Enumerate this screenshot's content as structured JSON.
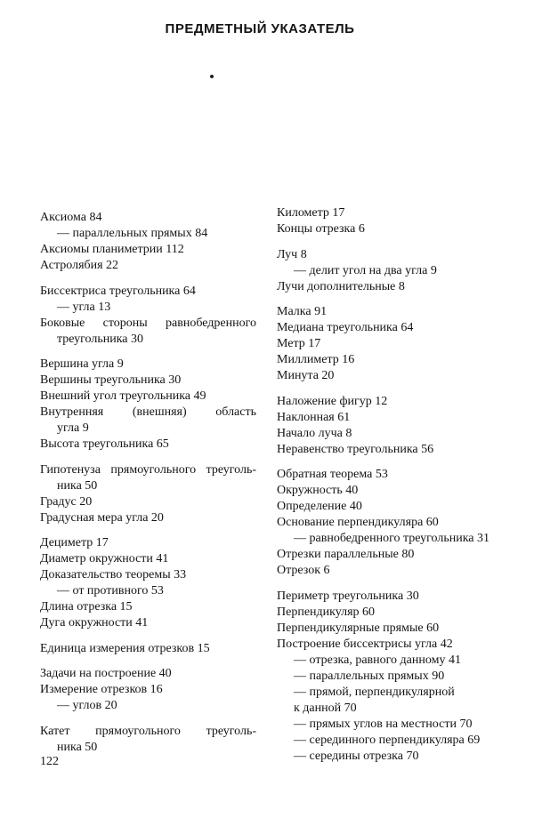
{
  "header": {
    "title": "ПРЕДМЕТНЫЙ УКАЗАТЕЛЬ"
  },
  "left_column": [
    [
      {
        "text": "Аксиома 84",
        "level": "main"
      },
      {
        "text": "— параллельных прямых 84",
        "level": "sub"
      },
      {
        "text": "Аксиомы планиметрии 112",
        "level": "main"
      },
      {
        "text": "Астролябия 22",
        "level": "main"
      }
    ],
    [
      {
        "text": "Биссектриса треугольника 64",
        "level": "main"
      },
      {
        "text": "— угла 13",
        "level": "sub"
      },
      {
        "text": "Боковые стороны равнобедренного",
        "level": "main"
      },
      {
        "text": "треугольника 30",
        "level": "cont"
      }
    ],
    [
      {
        "text": "Вершина угла 9",
        "level": "main"
      },
      {
        "text": "Вершины треугольника 30",
        "level": "main"
      },
      {
        "text": "Внешний угол треугольника 49",
        "level": "main"
      },
      {
        "text": "Внутренняя (внешняя) область",
        "level": "main"
      },
      {
        "text": "угла 9",
        "level": "cont"
      },
      {
        "text": "Высота треугольника 65",
        "level": "main"
      }
    ],
    [
      {
        "text": "Гипотенуза прямоугольного треуголь-",
        "level": "main"
      },
      {
        "text": "ника 50",
        "level": "cont"
      },
      {
        "text": "Градус 20",
        "level": "main"
      },
      {
        "text": "Градусная мера угла 20",
        "level": "main"
      }
    ],
    [
      {
        "text": "Дециметр 17",
        "level": "main"
      },
      {
        "text": "Диаметр окружности 41",
        "level": "main"
      },
      {
        "text": "Доказательство теоремы 33",
        "level": "main"
      },
      {
        "text": "— от противного 53",
        "level": "sub"
      },
      {
        "text": "Длина отрезка 15",
        "level": "main"
      },
      {
        "text": "Дуга окружности 41",
        "level": "main"
      }
    ],
    [
      {
        "text": "Единица измерения отрезков 15",
        "level": "main"
      }
    ],
    [
      {
        "text": "Задачи на построение 40",
        "level": "main"
      },
      {
        "text": "Измерение отрезков 16",
        "level": "main"
      },
      {
        "text": "— углов 20",
        "level": "sub"
      }
    ],
    [
      {
        "text": "Катет прямоугольного треуголь-",
        "level": "main"
      },
      {
        "text": "ника 50",
        "level": "cont"
      }
    ]
  ],
  "right_column": [
    [
      {
        "text": "Километр 17",
        "level": "main"
      },
      {
        "text": "Концы отрезка 6",
        "level": "main"
      }
    ],
    [
      {
        "text": "Луч 8",
        "level": "main"
      },
      {
        "text": "— делит угол на два угла 9",
        "level": "sub"
      },
      {
        "text": "Лучи дополнительные 8",
        "level": "main"
      }
    ],
    [
      {
        "text": "Малка 91",
        "level": "main"
      },
      {
        "text": "Медиана треугольника 64",
        "level": "main"
      },
      {
        "text": "Метр 17",
        "level": "main"
      },
      {
        "text": "Миллиметр 16",
        "level": "main"
      },
      {
        "text": "Минута 20",
        "level": "main"
      }
    ],
    [
      {
        "text": "Наложение фигур 12",
        "level": "main"
      },
      {
        "text": "Наклонная 61",
        "level": "main"
      },
      {
        "text": "Начало луча 8",
        "level": "main"
      },
      {
        "text": "Неравенство треугольника 56",
        "level": "main"
      }
    ],
    [
      {
        "text": "Обратная теорема 53",
        "level": "main"
      },
      {
        "text": "Окружность 40",
        "level": "main"
      },
      {
        "text": "Определение 40",
        "level": "main"
      },
      {
        "text": "Основание перпендикуляра 60",
        "level": "main"
      },
      {
        "text": "— равнобедренного треугольника 31",
        "level": "sub"
      },
      {
        "text": "Отрезки параллельные 80",
        "level": "main"
      },
      {
        "text": "Отрезок 6",
        "level": "main"
      }
    ],
    [
      {
        "text": "Периметр треугольника 30",
        "level": "main"
      },
      {
        "text": "Перпендикуляр 60",
        "level": "main"
      },
      {
        "text": "Перпендикулярные прямые 60",
        "level": "main"
      },
      {
        "text": "Построение биссектрисы угла 42",
        "level": "main"
      },
      {
        "text": "— отрезка, равного данному 41",
        "level": "sub"
      },
      {
        "text": "— параллельных прямых 90",
        "level": "sub"
      },
      {
        "text": "— прямой, перпендикулярной",
        "level": "sub"
      },
      {
        "text": "к данной 70",
        "level": "cont"
      },
      {
        "text": "— прямых углов на местности 70",
        "level": "sub"
      },
      {
        "text": "— серединного перпендикуляра 69",
        "level": "sub"
      },
      {
        "text": "— середины отрезка 70",
        "level": "sub"
      }
    ]
  ],
  "footer": {
    "page_number": "122"
  }
}
